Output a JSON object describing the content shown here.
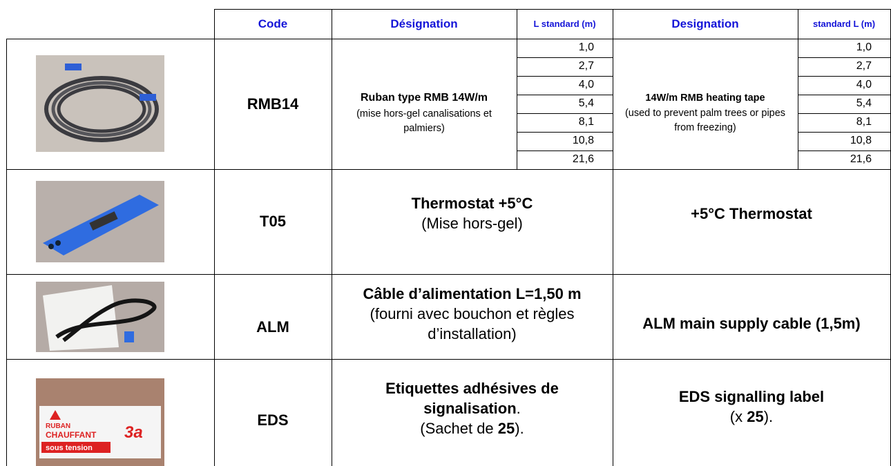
{
  "header": {
    "code": "Code",
    "designation_fr": "Désignation",
    "length_fr": "L standard (m)",
    "designation_en": "Designation",
    "length_en": "standard L (m)"
  },
  "rows": [
    {
      "code": "RMB14",
      "fr_title": "Ruban type RMB 14W/m",
      "fr_note": "(mise hors-gel canalisations et palmiers)",
      "en_title": "14W/m RMB heating tape",
      "en_note": "(used to prevent palm trees or pipes from freezing)",
      "lengths_fr": [
        "1,0",
        "2,7",
        "4,0",
        "5,4",
        "8,1",
        "10,8",
        "21,6"
      ],
      "lengths_en": [
        "1,0",
        "2,7",
        "4,0",
        "5,4",
        "8,1",
        "10,8",
        "21,6"
      ]
    },
    {
      "code": "T05",
      "fr_title": "Thermostat +5°C",
      "fr_note": "(Mise hors-gel)",
      "en_title": "+5°C Thermostat"
    },
    {
      "code": "ALM",
      "fr_title": "Câble d’alimentation L=1,50 m",
      "fr_note": "(fourni avec bouchon et règles d’installation)",
      "en_title": "ALM main supply cable (1,5m)"
    },
    {
      "code": "EDS",
      "fr_title": "Etiquettes adhésives de signalisation",
      "fr_title_end": ".",
      "fr_note_start": "(Sachet de ",
      "fr_note_count": "25",
      "fr_note_end": ").",
      "en_title": "EDS signalling label",
      "en_note_start": "(x ",
      "en_note_count": "25",
      "en_note_end": ")."
    }
  ],
  "photo_label": {
    "line1": "RUBAN",
    "line2": "CHAUFFANT",
    "line3": "sous tension",
    "brand": "3a"
  }
}
